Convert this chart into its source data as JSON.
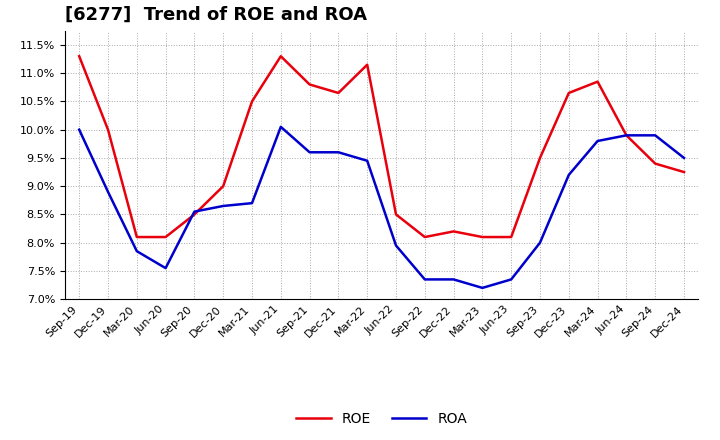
{
  "title": "[6277]  Trend of ROE and ROA",
  "x_labels": [
    "Sep-19",
    "Dec-19",
    "Mar-20",
    "Jun-20",
    "Sep-20",
    "Dec-20",
    "Mar-21",
    "Jun-21",
    "Sep-21",
    "Dec-21",
    "Mar-22",
    "Jun-22",
    "Sep-22",
    "Dec-22",
    "Mar-23",
    "Jun-23",
    "Sep-23",
    "Dec-23",
    "Mar-24",
    "Jun-24",
    "Sep-24",
    "Dec-24"
  ],
  "roe": [
    11.3,
    10.0,
    8.1,
    8.1,
    8.5,
    9.0,
    10.5,
    11.3,
    10.8,
    10.65,
    11.15,
    8.5,
    8.1,
    8.2,
    8.1,
    8.1,
    9.5,
    10.65,
    10.85,
    9.9,
    9.4,
    9.25
  ],
  "roa": [
    10.0,
    8.9,
    7.85,
    7.55,
    8.55,
    8.65,
    8.7,
    10.05,
    9.6,
    9.6,
    9.45,
    7.95,
    7.35,
    7.35,
    7.2,
    7.35,
    8.0,
    9.2,
    9.8,
    9.9,
    9.9,
    9.5
  ],
  "roe_color": "#e8000d",
  "roa_color": "#0000cc",
  "ylim_min": 7.0,
  "ylim_max": 11.75,
  "yticks": [
    7.0,
    7.5,
    8.0,
    8.5,
    9.0,
    9.5,
    10.0,
    10.5,
    11.0,
    11.5
  ],
  "background_color": "#ffffff",
  "plot_bg_color": "#ffffff",
  "grid_color": "#aaaaaa",
  "title_fontsize": 13,
  "legend_fontsize": 10,
  "tick_fontsize": 8,
  "linewidth": 1.8
}
